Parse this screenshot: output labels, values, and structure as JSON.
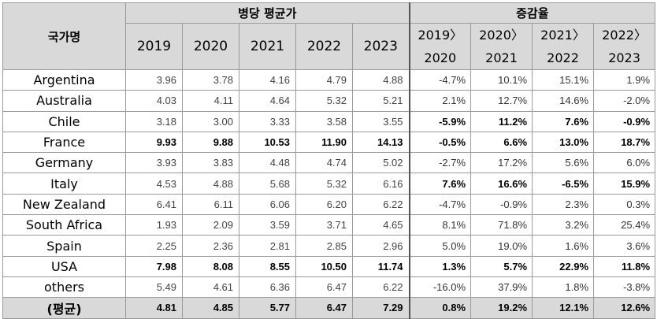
{
  "header": {
    "country_label": "국가명",
    "avg_price_label": "병당 평균가",
    "change_label": "증감율",
    "years": [
      "2019",
      "2020",
      "2021",
      "2022",
      "2023"
    ],
    "changes": [
      {
        "top": "2019〉",
        "bottom": "2020"
      },
      {
        "top": "2020〉",
        "bottom": "2021"
      },
      {
        "top": "2021〉",
        "bottom": "2022"
      },
      {
        "top": "2022〉",
        "bottom": "2023"
      }
    ]
  },
  "rows": [
    {
      "country": "Argentina",
      "values": [
        "3.96",
        "3.78",
        "4.16",
        "4.79",
        "4.88"
      ],
      "changes": [
        "-4.7%",
        "10.1%",
        "15.1%",
        "1.9%"
      ]
    },
    {
      "country": "Australia",
      "values": [
        "4.03",
        "4.11",
        "4.64",
        "5.32",
        "5.21"
      ],
      "changes": [
        "2.1%",
        "12.7%",
        "14.6%",
        "-2.0%"
      ]
    },
    {
      "country": "Chile",
      "values": [
        "3.18",
        "3.00",
        "3.33",
        "3.58",
        "3.55"
      ],
      "changes": [
        "-5.9%",
        "11.2%",
        "7.6%",
        "-0.9%"
      ]
    },
    {
      "country": "France",
      "values": [
        "9.93",
        "9.88",
        "10.53",
        "11.90",
        "14.13"
      ],
      "changes": [
        "-0.5%",
        "6.6%",
        "13.0%",
        "18.7%"
      ]
    },
    {
      "country": "Germany",
      "values": [
        "3.93",
        "3.83",
        "4.48",
        "4.74",
        "5.02"
      ],
      "changes": [
        "-2.7%",
        "17.2%",
        "5.6%",
        "6.0%"
      ]
    },
    {
      "country": "Italy",
      "values": [
        "4.53",
        "4.88",
        "5.68",
        "5.32",
        "6.16"
      ],
      "changes": [
        "7.6%",
        "16.6%",
        "-6.5%",
        "15.9%"
      ]
    },
    {
      "country": "New Zealand",
      "values": [
        "6.41",
        "6.11",
        "6.06",
        "6.20",
        "6.22"
      ],
      "changes": [
        "-4.7%",
        "-0.9%",
        "2.3%",
        "0.3%"
      ]
    },
    {
      "country": "South Africa",
      "values": [
        "1.93",
        "2.09",
        "3.59",
        "3.71",
        "4.65"
      ],
      "changes": [
        "8.1%",
        "71.8%",
        "3.2%",
        "25.4%"
      ]
    },
    {
      "country": "Spain",
      "values": [
        "2.25",
        "2.36",
        "2.81",
        "2.85",
        "2.96"
      ],
      "changes": [
        "5.0%",
        "19.0%",
        "1.6%",
        "3.6%"
      ]
    },
    {
      "country": "USA",
      "values": [
        "7.98",
        "8.08",
        "8.55",
        "10.50",
        "11.74"
      ],
      "changes": [
        "1.3%",
        "5.7%",
        "22.9%",
        "11.8%"
      ]
    },
    {
      "country": "others",
      "values": [
        "5.49",
        "4.61",
        "6.36",
        "6.47",
        "6.22"
      ],
      "changes": [
        "-16.0%",
        "37.9%",
        "1.8%",
        "-3.8%"
      ]
    },
    {
      "country": "(평균)",
      "values": [
        "4.81",
        "4.85",
        "5.77",
        "6.47",
        "7.29"
      ],
      "changes": [
        "0.8%",
        "19.2%",
        "12.1%",
        "12.6%"
      ]
    }
  ]
}
